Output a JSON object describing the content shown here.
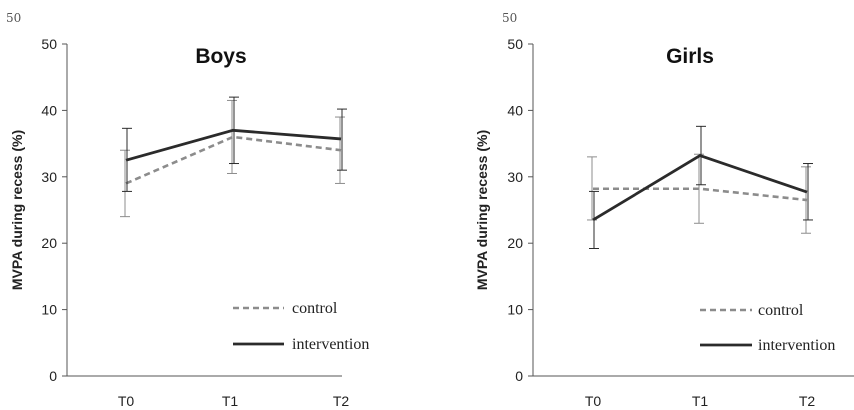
{
  "chart_data": [
    {
      "type": "line",
      "title": "Boys",
      "corner_text": "50",
      "ylabel": "MVPA during recess (%)",
      "xlabel": "",
      "categories": [
        "T0",
        "T1",
        "T2"
      ],
      "ylim": [
        0,
        50
      ],
      "yticks": [
        0,
        10,
        20,
        30,
        40,
        50
      ],
      "grid": false,
      "legend_position": "bottom-right",
      "series": [
        {
          "name": "control",
          "style": "dashed",
          "color": "#8c8c8c",
          "values": [
            29,
            36,
            34
          ],
          "error_low": [
            24,
            30.5,
            29
          ],
          "error_high": [
            34,
            41.5,
            39
          ]
        },
        {
          "name": "intervention",
          "style": "solid",
          "color": "#2b2b2b",
          "values": [
            32.5,
            37,
            35.7
          ],
          "error_low": [
            27.8,
            32,
            31
          ],
          "error_high": [
            37.3,
            42,
            40.2
          ]
        }
      ]
    },
    {
      "type": "line",
      "title": "Girls",
      "corner_text": "50",
      "ylabel": "MVPA during recess (%)",
      "xlabel": "",
      "categories": [
        "T0",
        "T1",
        "T2"
      ],
      "ylim": [
        0,
        50
      ],
      "yticks": [
        0,
        10,
        20,
        30,
        40,
        50
      ],
      "grid": false,
      "legend_position": "bottom-right",
      "series": [
        {
          "name": "control",
          "style": "dashed",
          "color": "#8c8c8c",
          "values": [
            28.2,
            28.2,
            26.5
          ],
          "error_low": [
            23.5,
            23,
            21.5
          ],
          "error_high": [
            33,
            33.4,
            31.5
          ]
        },
        {
          "name": "intervention",
          "style": "solid",
          "color": "#2b2b2b",
          "values": [
            23.5,
            33.2,
            27.7
          ],
          "error_low": [
            19.2,
            28.8,
            23.5
          ],
          "error_high": [
            27.8,
            37.6,
            32
          ]
        }
      ]
    }
  ]
}
